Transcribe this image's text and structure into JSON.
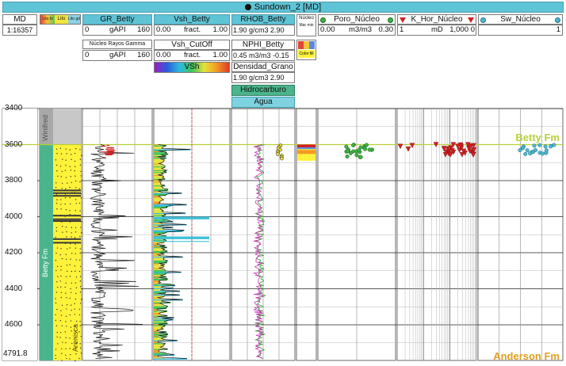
{
  "window": {
    "title": "Sundown_2 [MD]"
  },
  "index_track": {
    "label": "MD",
    "scale": "1:16357",
    "bottom_depth": "4791.8"
  },
  "depth_ticks": [
    "3400",
    "3600",
    "3800",
    "4000",
    "4200",
    "4400",
    "4600"
  ],
  "formations": {
    "top_band_label": "Winifred",
    "zone_label": "Betty Fm",
    "lito_label": "Arenisca",
    "top_marker": "Betty Fm",
    "bottom_marker": "Anderson Fm"
  },
  "tracks": {
    "lito": {
      "headers": [
        "Lito bi",
        "Lito",
        "Lito gdz"
      ]
    },
    "gr": {
      "title": "GR_Betty",
      "unit": "gAPI",
      "min": "0",
      "max": "160",
      "sub_title": "Núcleo Rayos Gamma",
      "sub_unit": "gAPI",
      "sub_min": "0",
      "sub_max": "160"
    },
    "vsh": {
      "title": "Vsh_Betty",
      "unit": "fract.",
      "min": "0.00",
      "max": "1.00",
      "cutoff_title": "Vsh_CutOff",
      "cutoff_unit": "fract.",
      "cutoff_min": "0.00",
      "cutoff_max": "1.00",
      "legend_label": "VSh"
    },
    "rhob": {
      "title": "RHOB_Betty",
      "range": "1.90 g/cm3 2.90",
      "nphi_title": "NPHI_Betty",
      "nphi_range": "0.45 m3/m3 -0.15",
      "grain_title": "Densidad_Grano",
      "grain_range": "1.90 g/cm3 2.90",
      "fill_hc": "Hidrocarburo",
      "fill_water": "Agua"
    },
    "nucleo": {
      "title": "Núcleo",
      "sub": "Mar min",
      "color_label": "Color fill"
    },
    "poro": {
      "title": "Poro_Núcleo",
      "unit": "m3/m3",
      "min": "0.00",
      "max": "0.30"
    },
    "khor": {
      "title": "K_Hor_Núcleo",
      "unit": "mD",
      "min": "1",
      "max": "1,000",
      "max_right": "0"
    },
    "sw": {
      "title": "Sw_Núcleo",
      "max": "1"
    }
  },
  "colors": {
    "header": "#5fc4d6",
    "formation_line": "#b9cf3a",
    "sand": "#fff23a",
    "zone_green": "#4bb48c",
    "gr_curve": "#111111",
    "nphi_curve": "#d12fbf",
    "rhob_curve": "#2aa02a",
    "poro_points": "#3fb043",
    "khor_points": "#d32020",
    "sw_points": "#4fb8d0"
  },
  "icons": {
    "title_dot": "record-dot-icon"
  }
}
